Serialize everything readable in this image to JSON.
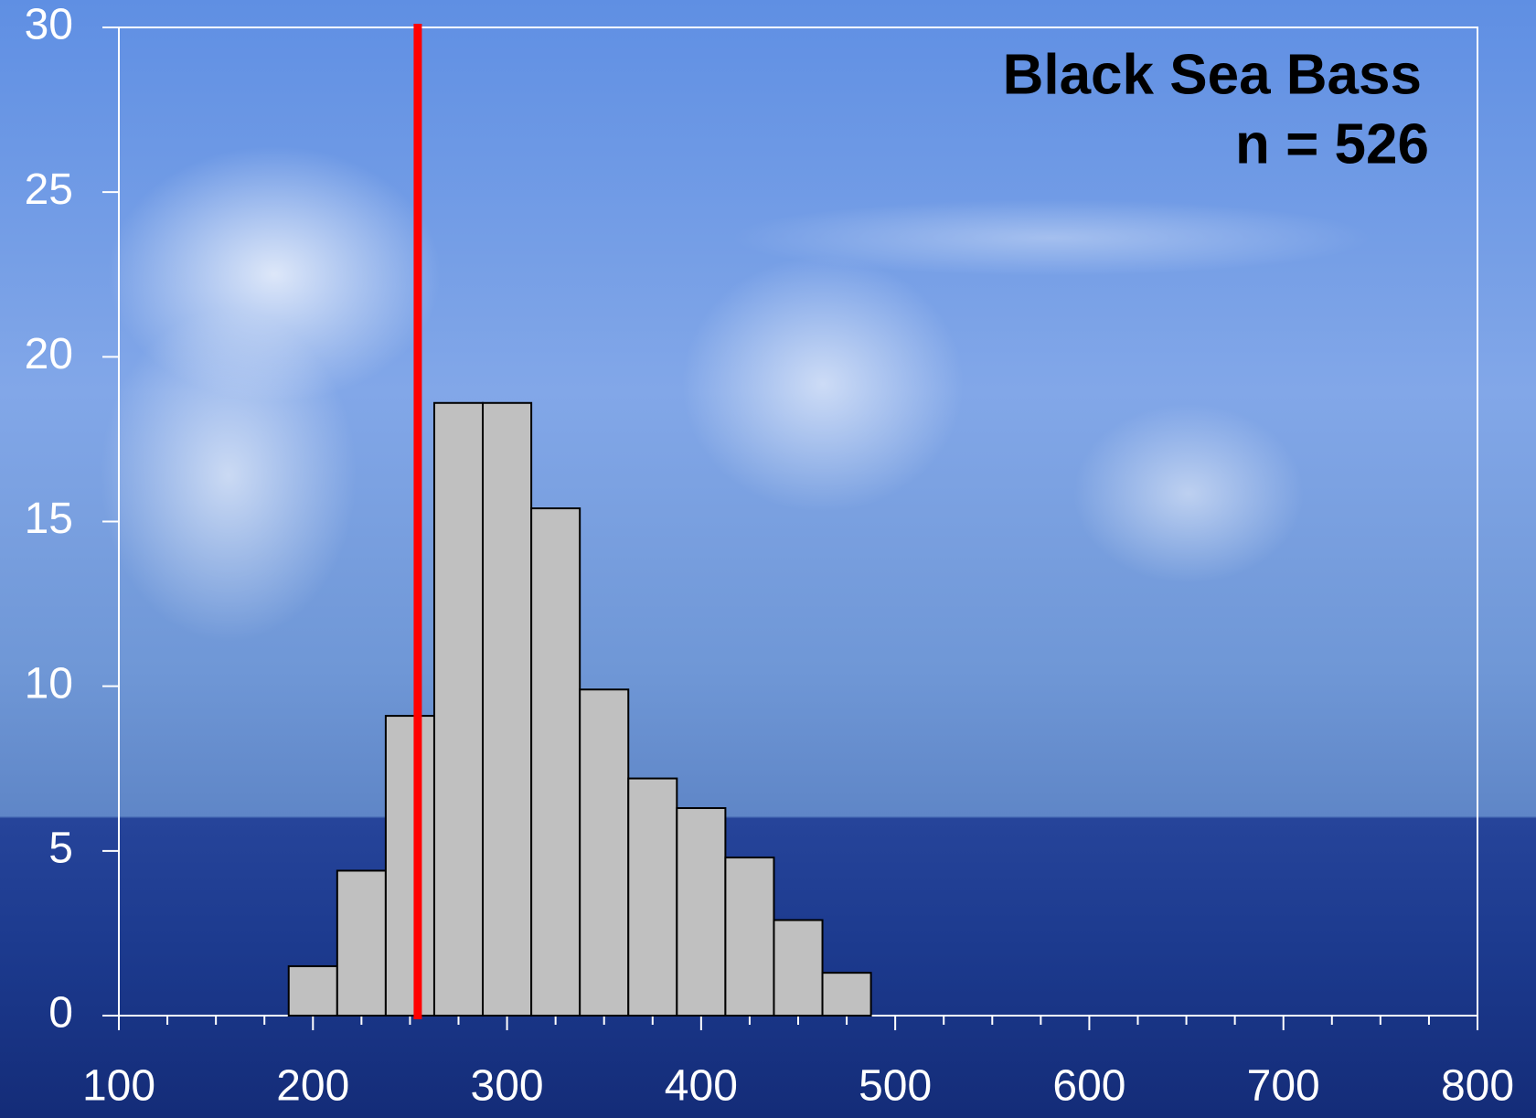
{
  "chart_data": {
    "type": "histogram",
    "annotations": [
      "Black Sea Bass",
      "n = 526"
    ],
    "bins": [
      187.5,
      212.5,
      237.5,
      262.5,
      287.5,
      312.5,
      337.5,
      362.5,
      387.5,
      412.5,
      437.5,
      462.5,
      487.5
    ],
    "values": [
      1.5,
      4.4,
      9.1,
      18.6,
      18.6,
      15.4,
      9.9,
      7.2,
      6.3,
      4.8,
      2.9,
      1.3
    ],
    "color": "#c0c0c0",
    "reference_line": {
      "x": 254,
      "color": "#ff0000"
    },
    "xlim": [
      100,
      800
    ],
    "xticks": [
      100,
      200,
      300,
      400,
      500,
      600,
      700,
      800
    ],
    "x_minor_ticks": [
      125,
      150,
      175,
      225,
      250,
      275,
      325,
      350,
      375,
      425,
      450,
      475,
      525,
      550,
      575,
      625,
      650,
      675,
      725,
      750,
      775
    ],
    "ylim": [
      0,
      30
    ],
    "yticks": [
      0,
      5,
      10,
      15,
      20,
      25,
      30
    ]
  }
}
